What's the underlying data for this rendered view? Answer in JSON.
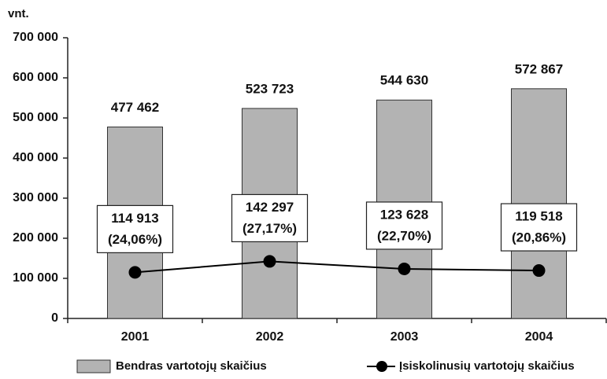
{
  "chart_data": {
    "type": "bar-line",
    "y_label": "vnt.",
    "categories": [
      "2001",
      "2002",
      "2003",
      "2004"
    ],
    "series": [
      {
        "name": "Bendras vartotojų skaičius",
        "type": "bar",
        "color": "#b3b3b3",
        "values": [
          477462,
          523723,
          544630,
          572867
        ],
        "value_labels": [
          "477 462",
          "523 723",
          "544 630",
          "572 867"
        ]
      },
      {
        "name": "Įsiskolinusių vartotojų skaičius",
        "type": "line",
        "color": "#000000",
        "values": [
          114913,
          142297,
          123628,
          119518
        ],
        "value_labels": [
          "114 913",
          "142 297",
          "123 628",
          "119 518"
        ],
        "shares": [
          24.06,
          27.17,
          22.7,
          20.86
        ],
        "share_labels": [
          "(24,06%)",
          "(27,17%)",
          "(22,70%)",
          "(20,86%)"
        ]
      }
    ],
    "ylim": [
      0,
      700000
    ],
    "yticks": [
      0,
      {
        "value": 100000,
        "label": "100 000"
      },
      {
        "value": 200000,
        "label": "200 000"
      },
      {
        "value": 300000,
        "label": "300 000"
      },
      {
        "value": 400000,
        "label": "400 000"
      },
      {
        "value": 500000,
        "label": "500 000"
      },
      {
        "value": 600000,
        "label": "600 000"
      },
      {
        "value": 700000,
        "label": "700 000"
      }
    ],
    "legend": "bottom"
  }
}
